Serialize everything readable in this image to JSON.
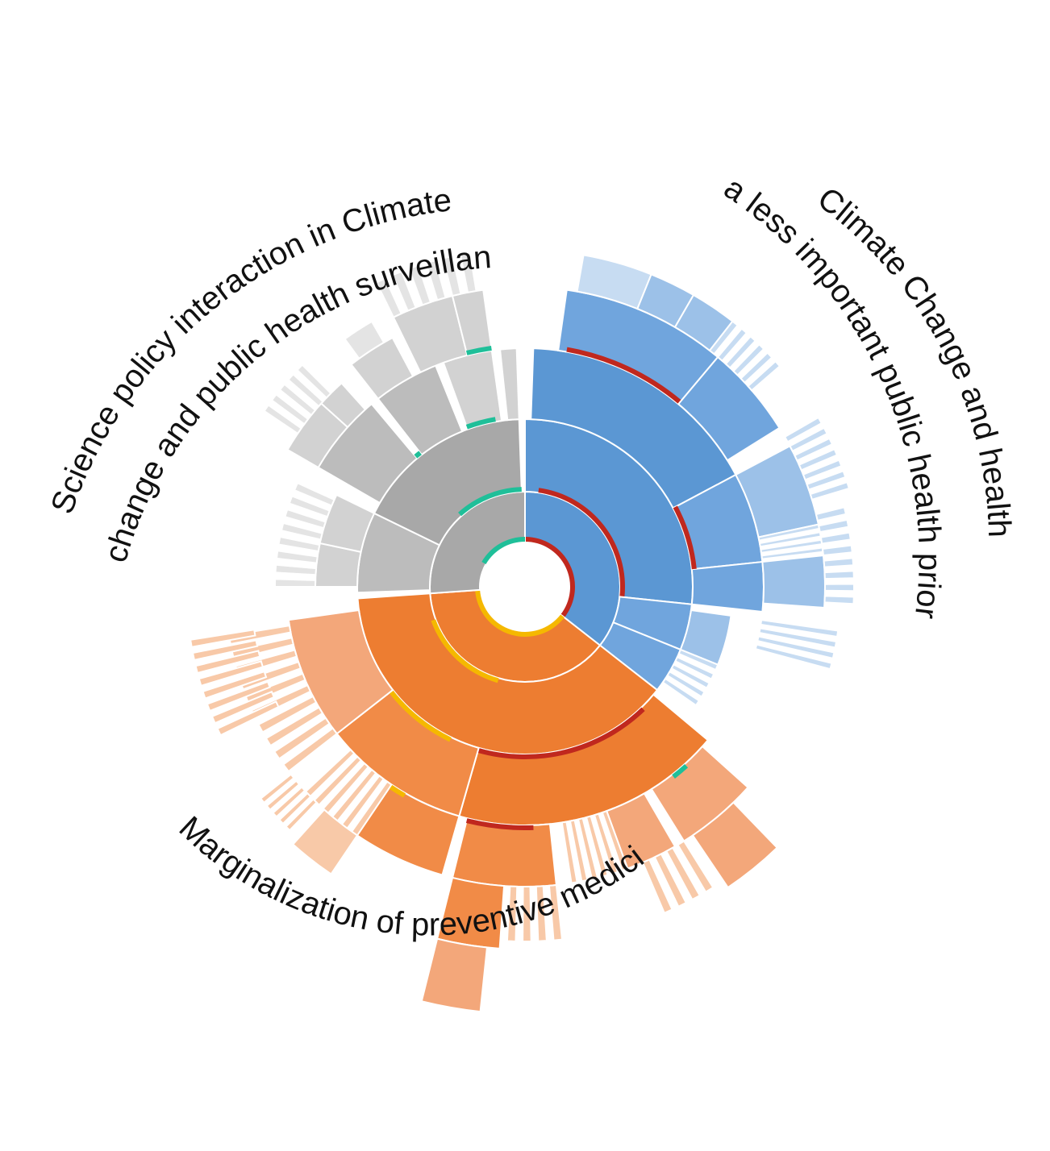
{
  "chart_data": {
    "type": "sunburst",
    "title": "",
    "colors": {
      "blue": [
        "#5b97d3",
        "#70a5dd",
        "#9cc1e8",
        "#c7dcf2"
      ],
      "orange": [
        "#ed7d31",
        "#f18b47",
        "#f3a77a",
        "#f8c9a8"
      ],
      "gray": [
        "#a8a8a8",
        "#bcbcbc",
        "#d2d2d2",
        "#e4e4e4"
      ],
      "accent_red": "#c0281e",
      "accent_green": "#1fbf99",
      "accent_yellow": "#f5b800"
    },
    "label_lines": [
      {
        "text": "Climate Change and health",
        "category": "Climate Change and health a less important public health priority"
      },
      {
        "text": "a less important public health priority",
        "category": "Climate Change and health a less important public health priority"
      },
      {
        "text": "Science policy interaction in Climate",
        "category": "Science policy interaction in Climate change and public health surveillance"
      },
      {
        "text": "change and public health surveillance",
        "category": "Science policy interaction in Climate change and public health surveillance"
      },
      {
        "text": "Marginalization of preventive medicine",
        "category": "Marginalization of preventive medicine"
      }
    ],
    "categories": [
      {
        "name": "Climate Change and health a less important public health priority",
        "color": "blue",
        "start_deg": 0,
        "end_deg": 128
      },
      {
        "name": "Marginalization of preventive medicine",
        "color": "orange",
        "start_deg": 128,
        "end_deg": 266
      },
      {
        "name": "Science policy interaction in Climate change and public health surveillance",
        "color": "gray",
        "start_deg": 266,
        "end_deg": 360
      }
    ]
  }
}
